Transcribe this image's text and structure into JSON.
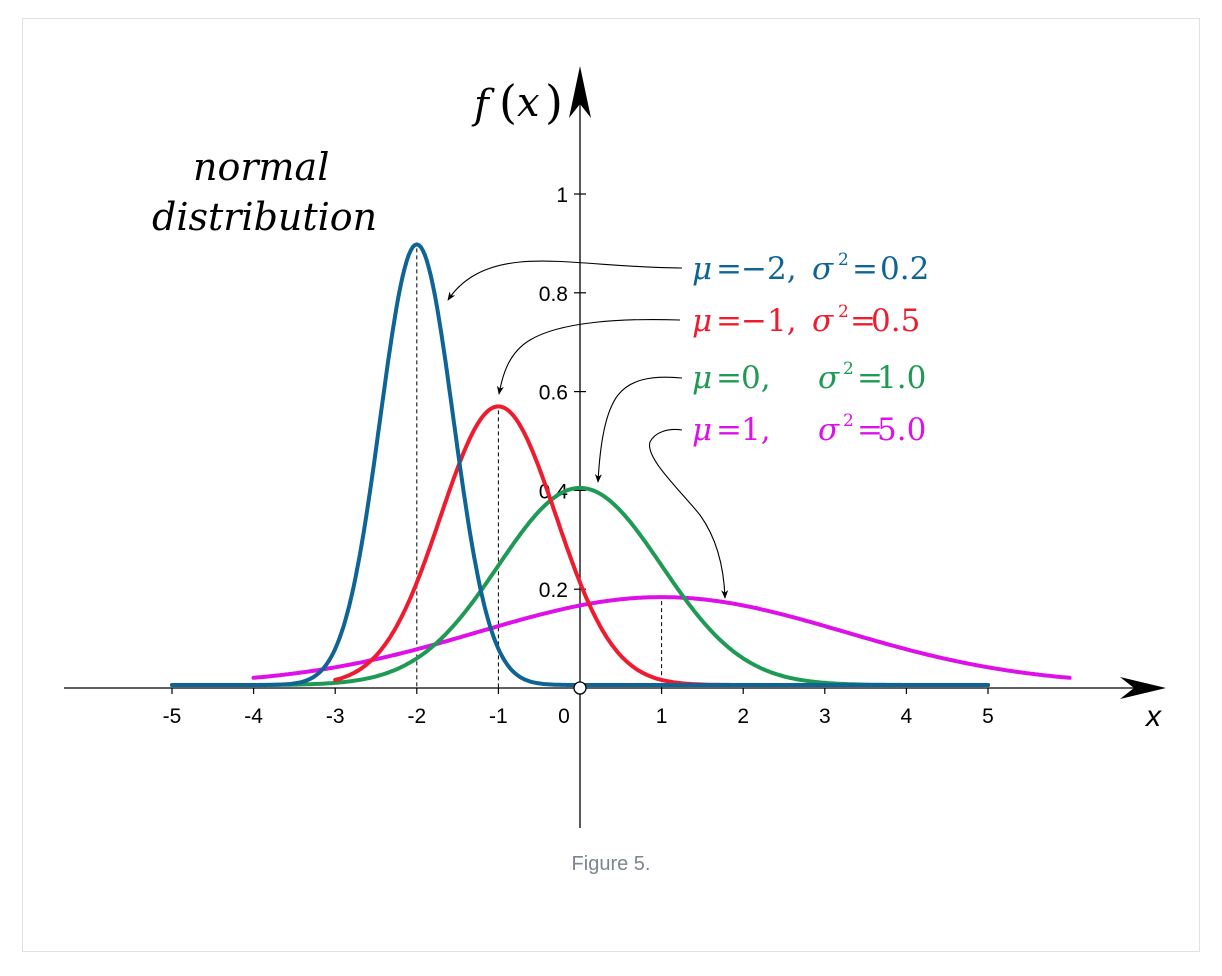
{
  "chart_data": {
    "type": "line",
    "title": "normal distribution",
    "title_lines": [
      "normal",
      "distribution"
    ],
    "xlabel": "x",
    "ylabel_parts": {
      "f": "f",
      "open": "(",
      "x": "x",
      "close": ")"
    },
    "xlim": [
      -5,
      5
    ],
    "ylim": [
      0,
      1
    ],
    "x_ticks": [
      "-5",
      "-4",
      "-3",
      "-2",
      "-1",
      "0",
      "1",
      "2",
      "3",
      "4",
      "5"
    ],
    "y_ticks": [
      "0.2",
      "0.4",
      "0.6",
      "0.8",
      "1"
    ],
    "series": [
      {
        "name": "μ=−2, σ²=0.2",
        "mu": -2,
        "sigma2": 0.2,
        "color": "#0e6495",
        "x_range": [
          -5,
          5
        ],
        "peak": 0.892
      },
      {
        "name": "μ=−1, σ²=0.5",
        "mu": -1,
        "sigma2": 0.5,
        "color": "#ee1c2e",
        "x_range": [
          -3,
          5
        ],
        "peak": 0.564
      },
      {
        "name": "μ=0, σ²=1.0",
        "mu": 0,
        "sigma2": 1.0,
        "color": "#1e9a55",
        "x_range": [
          -5,
          5
        ],
        "peak": 0.399
      },
      {
        "name": "μ=1, σ²=5.0",
        "mu": 1,
        "sigma2": 5.0,
        "color": "#dd10e8",
        "x_range": [
          -4,
          6
        ],
        "peak": 0.178
      }
    ],
    "legend": [
      {
        "mu_sym": "μ",
        "eq1": "=",
        "mu_val": "−2,",
        "sigma_sym": "σ",
        "sup": "2",
        "eq2": "=",
        "var_val": "0.2",
        "color": "#0e6495"
      },
      {
        "mu_sym": "μ",
        "eq1": "=",
        "mu_val": "−1,",
        "sigma_sym": "σ",
        "sup": "2",
        "eq2": "=",
        "var_val": "0.5",
        "color": "#ee1c2e"
      },
      {
        "mu_sym": "μ",
        "eq1": "=",
        "mu_val": "0,",
        "sigma_sym": "σ",
        "sup": "2",
        "eq2": "=",
        "var_val": "1.0",
        "color": "#1e9a55"
      },
      {
        "mu_sym": "μ",
        "eq1": "=",
        "mu_val": "1,",
        "sigma_sym": "σ",
        "sup": "2",
        "eq2": "=",
        "var_val": "5.0",
        "color": "#dd10e8"
      }
    ],
    "legend_position": "top-right"
  },
  "caption": "Figure 5."
}
